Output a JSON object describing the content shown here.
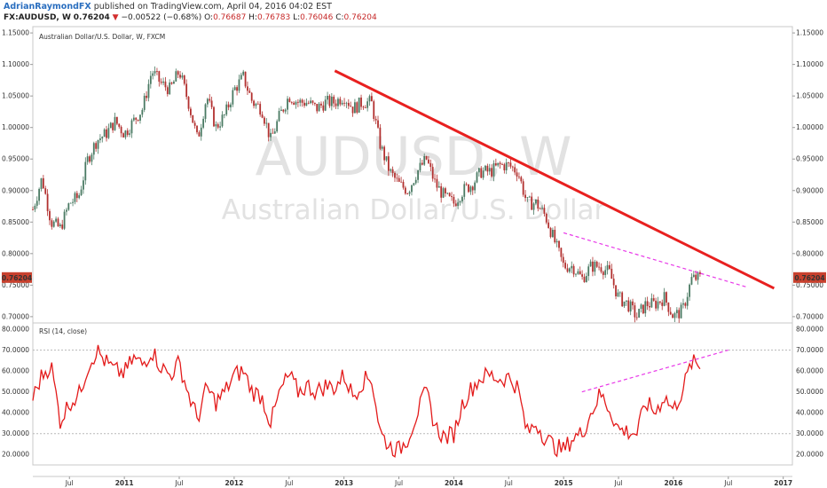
{
  "header": {
    "author": "AdrianRaymondFX",
    "published": "published on TradingView.com, April 04, 2016 04:02 EST",
    "symbol": "FX:AUDUSD, W",
    "last": "0.76204",
    "change": "−0.00522 (−0.68%)",
    "o_label": "O:",
    "o_val": "0.76687",
    "h_label": "H:",
    "h_val": "0.76783",
    "l_label": "L:",
    "l_val": "0.76046",
    "c_label": "C:",
    "c_val": "0.76204"
  },
  "chart_data": [
    {
      "type": "candlestick",
      "title": "Australian Dollar/U.S. Dollar, W, FXCM",
      "watermark_symbol": "AUDUSD, W",
      "watermark_name": "Australian Dollar/U.S. Dollar",
      "last_price_label": "0.76204",
      "ylim": [
        0.69,
        1.16
      ],
      "y_ticks": [
        "1.15000",
        "1.10000",
        "1.05000",
        "1.00000",
        "0.95000",
        "0.90000",
        "0.85000",
        "0.80000",
        "0.75000",
        "0.70000"
      ],
      "x_ticks": [
        "Jul",
        "2011",
        "Jul",
        "2012",
        "Jul",
        "2013",
        "Jul",
        "2014",
        "Jul",
        "2015",
        "Jul",
        "2016",
        "Jul",
        "2017"
      ],
      "x_range": [
        "2010-03",
        "2017-02"
      ],
      "up_color": "#4a7a63",
      "down_color": "#b2302f",
      "close_path": [
        [
          "2010-03",
          0.87
        ],
        [
          "2010-04",
          0.92
        ],
        [
          "2010-05",
          0.85
        ],
        [
          "2010-06",
          0.84
        ],
        [
          "2010-07",
          0.88
        ],
        [
          "2010-08",
          0.89
        ],
        [
          "2010-09",
          0.95
        ],
        [
          "2010-10",
          0.98
        ],
        [
          "2010-11",
          0.99
        ],
        [
          "2010-12",
          1.01
        ],
        [
          "2011-01",
          0.99
        ],
        [
          "2011-02",
          1.01
        ],
        [
          "2011-03",
          1.03
        ],
        [
          "2011-04",
          1.09
        ],
        [
          "2011-05",
          1.07
        ],
        [
          "2011-06",
          1.06
        ],
        [
          "2011-07",
          1.09
        ],
        [
          "2011-08",
          1.04
        ],
        [
          "2011-09",
          0.98
        ],
        [
          "2011-10",
          1.05
        ],
        [
          "2011-11",
          1.0
        ],
        [
          "2011-12",
          1.02
        ],
        [
          "2012-01",
          1.06
        ],
        [
          "2012-02",
          1.08
        ],
        [
          "2012-03",
          1.04
        ],
        [
          "2012-04",
          1.03
        ],
        [
          "2012-05",
          0.98
        ],
        [
          "2012-06",
          1.02
        ],
        [
          "2012-07",
          1.05
        ],
        [
          "2012-08",
          1.04
        ],
        [
          "2012-09",
          1.04
        ],
        [
          "2012-10",
          1.03
        ],
        [
          "2012-11",
          1.04
        ],
        [
          "2012-12",
          1.04
        ],
        [
          "2013-01",
          1.05
        ],
        [
          "2013-02",
          1.03
        ],
        [
          "2013-03",
          1.04
        ],
        [
          "2013-04",
          1.04
        ],
        [
          "2013-05",
          0.97
        ],
        [
          "2013-06",
          0.93
        ],
        [
          "2013-07",
          0.91
        ],
        [
          "2013-08",
          0.9
        ],
        [
          "2013-09",
          0.93
        ],
        [
          "2013-10",
          0.95
        ],
        [
          "2013-11",
          0.91
        ],
        [
          "2013-12",
          0.89
        ],
        [
          "2014-01",
          0.88
        ],
        [
          "2014-02",
          0.9
        ],
        [
          "2014-03",
          0.91
        ],
        [
          "2014-04",
          0.93
        ],
        [
          "2014-05",
          0.93
        ],
        [
          "2014-06",
          0.94
        ],
        [
          "2014-07",
          0.94
        ],
        [
          "2014-08",
          0.93
        ],
        [
          "2014-09",
          0.88
        ],
        [
          "2014-10",
          0.88
        ],
        [
          "2014-11",
          0.86
        ],
        [
          "2014-12",
          0.82
        ],
        [
          "2015-01",
          0.78
        ],
        [
          "2015-02",
          0.78
        ],
        [
          "2015-03",
          0.76
        ],
        [
          "2015-04",
          0.78
        ],
        [
          "2015-05",
          0.78
        ],
        [
          "2015-06",
          0.77
        ],
        [
          "2015-07",
          0.73
        ],
        [
          "2015-08",
          0.72
        ],
        [
          "2015-09",
          0.7
        ],
        [
          "2015-10",
          0.72
        ],
        [
          "2015-11",
          0.72
        ],
        [
          "2015-12",
          0.73
        ],
        [
          "2016-01",
          0.7
        ],
        [
          "2016-02",
          0.71
        ],
        [
          "2016-03",
          0.76
        ],
        [
          "2016-04",
          0.762
        ]
      ],
      "trendlines": [
        {
          "color": "#e8201f",
          "style": "solid",
          "from": [
            "2012-12",
            1.09
          ],
          "to": [
            "2016-12",
            0.745
          ]
        },
        {
          "color": "#e838e8",
          "style": "dashed",
          "from": [
            "2015-01",
            0.833
          ],
          "to": [
            "2016-09",
            0.747
          ]
        }
      ]
    },
    {
      "type": "line",
      "title": "RSI (14, close)",
      "ylim": [
        15,
        83
      ],
      "y_ticks": [
        "80.0000",
        "70.0000",
        "60.0000",
        "50.0000",
        "40.0000",
        "30.0000",
        "20.0000"
      ],
      "reference_lines": [
        70,
        30
      ],
      "series": [
        {
          "color": "#e31a1a",
          "points": [
            [
              "2010-03",
              47
            ],
            [
              "2010-04",
              58
            ],
            [
              "2010-05",
              63
            ],
            [
              "2010-06",
              36
            ],
            [
              "2010-07",
              45
            ],
            [
              "2010-08",
              48
            ],
            [
              "2010-09",
              62
            ],
            [
              "2010-10",
              70
            ],
            [
              "2010-11",
              64
            ],
            [
              "2010-12",
              60
            ],
            [
              "2011-01",
              59
            ],
            [
              "2011-02",
              66
            ],
            [
              "2011-03",
              63
            ],
            [
              "2011-04",
              70
            ],
            [
              "2011-05",
              62
            ],
            [
              "2011-06",
              58
            ],
            [
              "2011-07",
              64
            ],
            [
              "2011-08",
              49
            ],
            [
              "2011-09",
              37
            ],
            [
              "2011-10",
              52
            ],
            [
              "2011-11",
              45
            ],
            [
              "2011-12",
              50
            ],
            [
              "2012-01",
              58
            ],
            [
              "2012-02",
              60
            ],
            [
              "2012-03",
              50
            ],
            [
              "2012-04",
              48
            ],
            [
              "2012-05",
              35
            ],
            [
              "2012-06",
              50
            ],
            [
              "2012-07",
              58
            ],
            [
              "2012-08",
              50
            ],
            [
              "2012-09",
              53
            ],
            [
              "2012-10",
              50
            ],
            [
              "2012-11",
              53
            ],
            [
              "2012-12",
              52
            ],
            [
              "2013-01",
              58
            ],
            [
              "2013-02",
              48
            ],
            [
              "2013-03",
              55
            ],
            [
              "2013-04",
              57
            ],
            [
              "2013-05",
              30
            ],
            [
              "2013-06",
              24
            ],
            [
              "2013-07",
              22
            ],
            [
              "2013-08",
              28
            ],
            [
              "2013-09",
              40
            ],
            [
              "2013-10",
              50
            ],
            [
              "2013-11",
              33
            ],
            [
              "2013-12",
              28
            ],
            [
              "2014-01",
              30
            ],
            [
              "2014-02",
              45
            ],
            [
              "2014-03",
              52
            ],
            [
              "2014-04",
              57
            ],
            [
              "2014-05",
              58
            ],
            [
              "2014-06",
              56
            ],
            [
              "2014-07",
              57
            ],
            [
              "2014-08",
              52
            ],
            [
              "2014-09",
              30
            ],
            [
              "2014-10",
              35
            ],
            [
              "2014-11",
              28
            ],
            [
              "2014-12",
              24
            ],
            [
              "2015-01",
              22
            ],
            [
              "2015-02",
              28
            ],
            [
              "2015-03",
              30
            ],
            [
              "2015-04",
              40
            ],
            [
              "2015-05",
              49
            ],
            [
              "2015-06",
              42
            ],
            [
              "2015-07",
              32
            ],
            [
              "2015-08",
              31
            ],
            [
              "2015-09",
              30
            ],
            [
              "2015-10",
              45
            ],
            [
              "2015-11",
              40
            ],
            [
              "2015-12",
              48
            ],
            [
              "2016-01",
              41
            ],
            [
              "2016-02",
              51
            ],
            [
              "2016-03",
              64
            ],
            [
              "2016-04",
              62
            ]
          ]
        }
      ],
      "trendlines": [
        {
          "color": "#e838e8",
          "style": "dashed",
          "from": [
            "2015-03",
            50
          ],
          "to": [
            "2016-07",
            70
          ]
        }
      ]
    }
  ]
}
